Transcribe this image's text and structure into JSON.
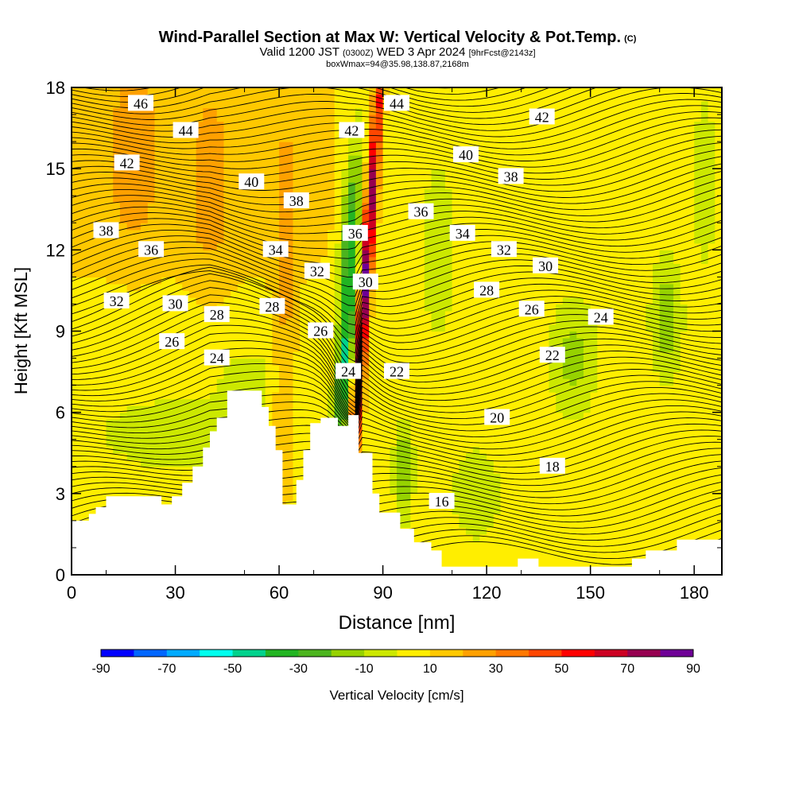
{
  "title": {
    "main": "Wind-Parallel Section at Max W: Vertical Velocity & Pot.Temp.",
    "copyright": "(C)",
    "valid_prefix": "Valid 1200 JST",
    "valid_utc": "(0300Z)",
    "valid_date": "WED 3 Apr 2024",
    "fcst": "[9hrFcst@2143z]",
    "box": "boxWmax=94@35.98,138.87,2168m"
  },
  "chart_data": {
    "type": "heatmap",
    "xlabel": "Distance [nm]",
    "ylabel": "Height [Kft MSL]",
    "xlim": [
      0,
      188
    ],
    "ylim": [
      0,
      18
    ],
    "xticks": [
      "0",
      "30",
      "60",
      "90",
      "120",
      "150",
      "180"
    ],
    "yticks": [
      "0",
      "3",
      "6",
      "9",
      "12",
      "15",
      "18"
    ],
    "colorbar": {
      "label": "Vertical Velocity [cm/s]",
      "ticks": [
        "-90",
        "-70",
        "-50",
        "-30",
        "-10",
        "10",
        "30",
        "50",
        "70",
        "90"
      ],
      "colors": [
        "#0000ff",
        "#0066ff",
        "#00aaff",
        "#00ffee",
        "#00d28c",
        "#22b422",
        "#4cb41e",
        "#96d200",
        "#cce800",
        "#ffee00",
        "#ffc800",
        "#ffa000",
        "#ff7800",
        "#ff4600",
        "#ff0000",
        "#cc0022",
        "#960050",
        "#6e0096"
      ]
    },
    "theta_contours_K": [
      "46",
      "44",
      "42",
      "40",
      "38",
      "36",
      "34",
      "32",
      "30",
      "28",
      "26",
      "24",
      "22",
      "20",
      "18",
      "16"
    ],
    "contour_labels": [
      {
        "text": "46",
        "x": 20,
        "y": 17.4
      },
      {
        "text": "44",
        "x": 33,
        "y": 16.4
      },
      {
        "text": "42",
        "x": 16,
        "y": 15.2
      },
      {
        "text": "40",
        "x": 52,
        "y": 14.5
      },
      {
        "text": "38",
        "x": 65,
        "y": 13.8
      },
      {
        "text": "36",
        "x": 82,
        "y": 12.6
      },
      {
        "text": "38",
        "x": 10,
        "y": 12.7
      },
      {
        "text": "36",
        "x": 23,
        "y": 12.0
      },
      {
        "text": "34",
        "x": 59,
        "y": 12.0
      },
      {
        "text": "32",
        "x": 71,
        "y": 11.2
      },
      {
        "text": "32",
        "x": 13,
        "y": 10.1
      },
      {
        "text": "30",
        "x": 30,
        "y": 10.0
      },
      {
        "text": "28",
        "x": 42,
        "y": 9.6
      },
      {
        "text": "28",
        "x": 58,
        "y": 9.9
      },
      {
        "text": "26",
        "x": 72,
        "y": 9.0
      },
      {
        "text": "26",
        "x": 29,
        "y": 8.6
      },
      {
        "text": "24",
        "x": 42,
        "y": 8.0
      },
      {
        "text": "24",
        "x": 80,
        "y": 7.5
      },
      {
        "text": "22",
        "x": 94,
        "y": 7.5
      },
      {
        "text": "42",
        "x": 81,
        "y": 16.4
      },
      {
        "text": "44",
        "x": 94,
        "y": 17.4
      },
      {
        "text": "42",
        "x": 136,
        "y": 16.9
      },
      {
        "text": "40",
        "x": 114,
        "y": 15.5
      },
      {
        "text": "38",
        "x": 127,
        "y": 14.7
      },
      {
        "text": "36",
        "x": 101,
        "y": 13.4
      },
      {
        "text": "34",
        "x": 113,
        "y": 12.6
      },
      {
        "text": "32",
        "x": 125,
        "y": 12.0
      },
      {
        "text": "30",
        "x": 137,
        "y": 11.4
      },
      {
        "text": "30",
        "x": 85,
        "y": 10.8
      },
      {
        "text": "28",
        "x": 120,
        "y": 10.5
      },
      {
        "text": "26",
        "x": 133,
        "y": 9.8
      },
      {
        "text": "24",
        "x": 153,
        "y": 9.5
      },
      {
        "text": "22",
        "x": 139,
        "y": 8.1
      },
      {
        "text": "20",
        "x": 123,
        "y": 5.8
      },
      {
        "text": "18",
        "x": 139,
        "y": 4.0
      },
      {
        "text": "16",
        "x": 107,
        "y": 2.7
      }
    ]
  }
}
